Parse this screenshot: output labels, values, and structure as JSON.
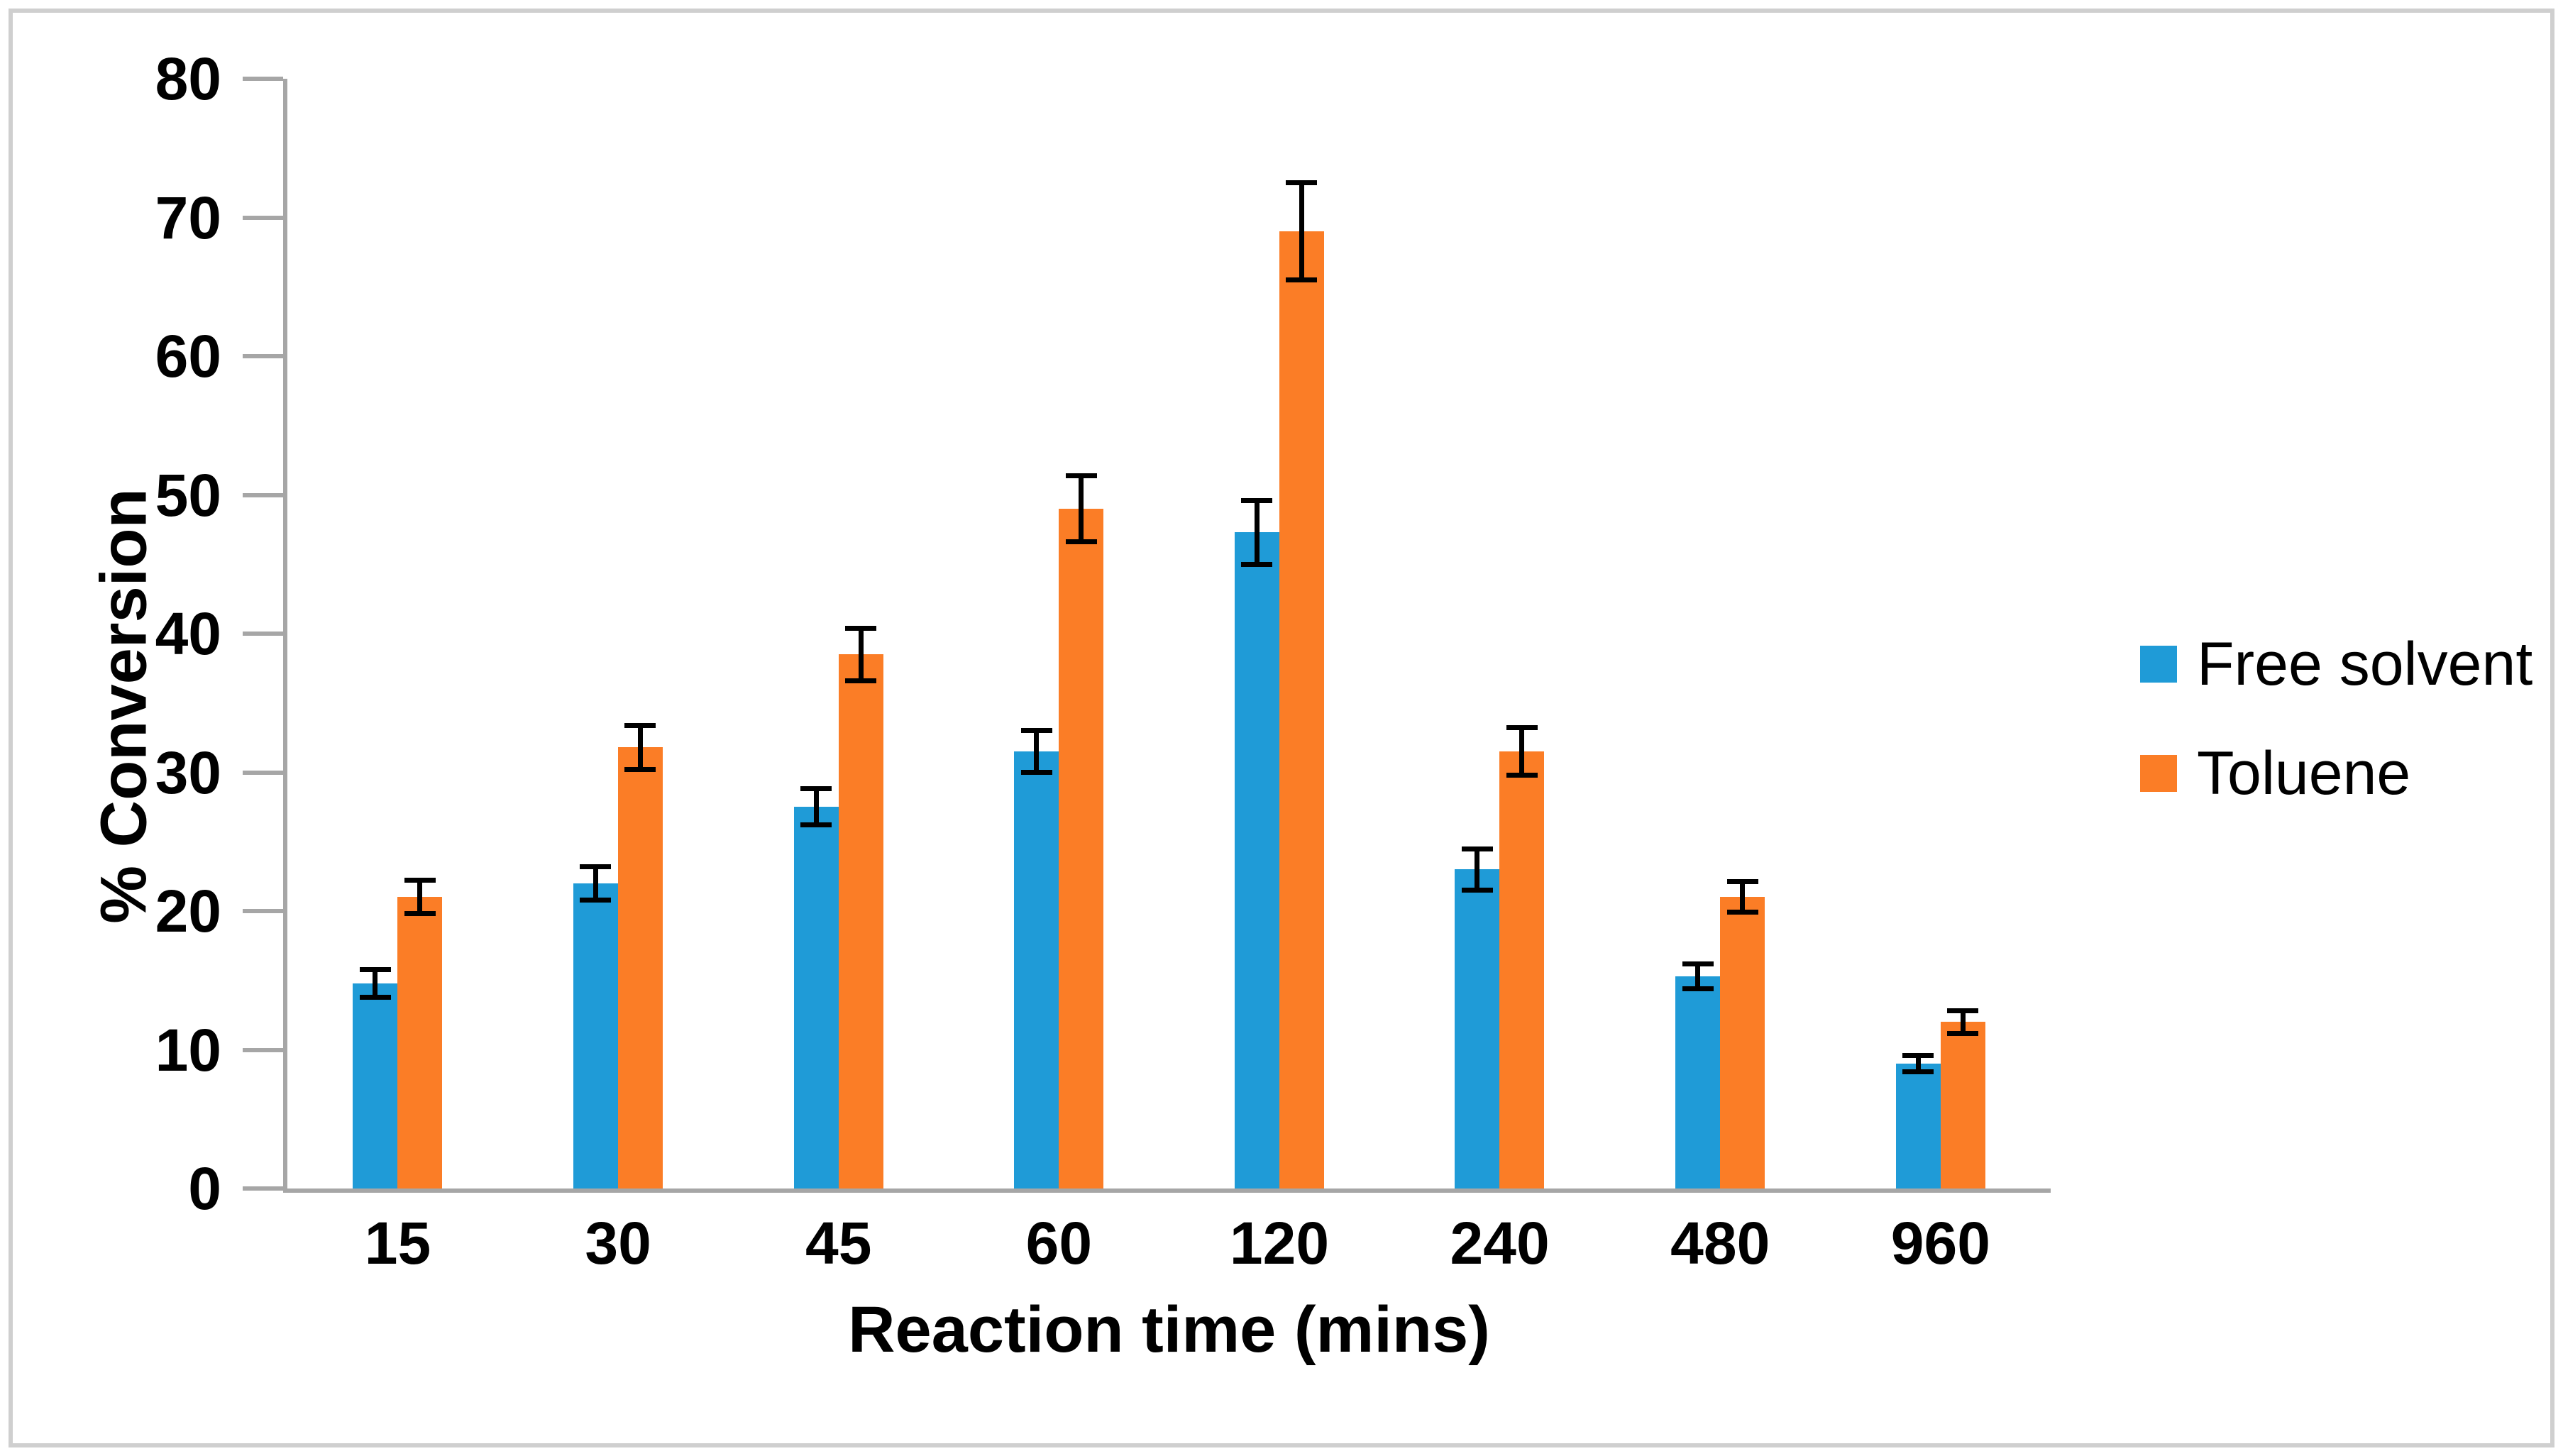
{
  "chart_data": {
    "type": "bar",
    "title": "",
    "xlabel": "Reaction time (mins)",
    "ylabel": "% Conversion",
    "categories": [
      "15",
      "30",
      "45",
      "60",
      "120",
      "240",
      "480",
      "960"
    ],
    "y_ticks": [
      0,
      10,
      20,
      30,
      40,
      50,
      60,
      70,
      80
    ],
    "ylim": [
      0,
      80
    ],
    "grid": false,
    "legend_position": "right",
    "error_bars": true,
    "series": [
      {
        "name": "Free solvent",
        "color": "#1f9bd7",
        "values": [
          14.8,
          22.0,
          27.5,
          31.5,
          47.3,
          23.0,
          15.3,
          9.0
        ],
        "errors": [
          1.0,
          1.2,
          1.3,
          1.5,
          2.3,
          1.5,
          0.9,
          0.6
        ]
      },
      {
        "name": "Toluene",
        "color": "#fb7d26",
        "values": [
          21.0,
          31.8,
          38.5,
          49.0,
          69.0,
          31.5,
          21.0,
          12.0
        ],
        "errors": [
          1.2,
          1.6,
          1.9,
          2.4,
          3.5,
          1.7,
          1.1,
          0.8
        ]
      }
    ],
    "colors": {
      "axis": "#a6a6a6",
      "chart_border": "#cfcfcf",
      "error_bar": "#000000",
      "text": "#000000",
      "background": "#ffffff"
    }
  }
}
